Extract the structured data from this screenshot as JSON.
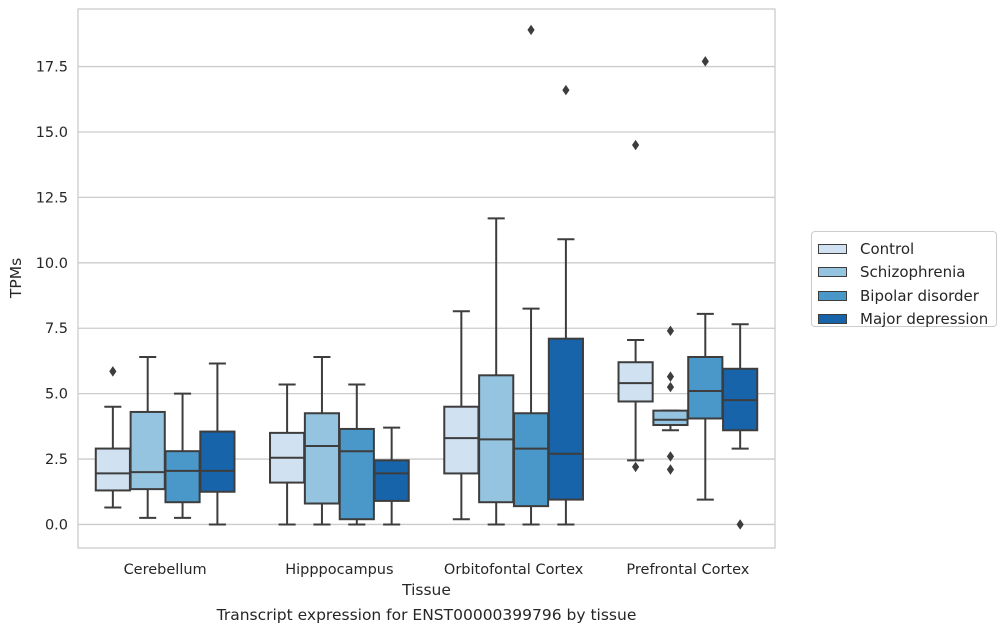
{
  "caption": "Transcript expression for ENST00000399796 by tissue",
  "chart_data": {
    "type": "box",
    "xlabel": "Tissue",
    "ylabel": "TPMs",
    "ylim": [
      -0.9,
      19.7
    ],
    "yticks": [
      0.0,
      2.5,
      5.0,
      7.5,
      10.0,
      12.5,
      15.0,
      17.5
    ],
    "ytick_labels": [
      "0.0",
      "2.5",
      "5.0",
      "7.5",
      "10.0",
      "12.5",
      "15.0",
      "17.5"
    ],
    "grid": "horizontal",
    "legend_position": "right",
    "categories": [
      "Cerebellum",
      "Hipppocampus",
      "Orbitofontal Cortex",
      "Prefrontal Cortex"
    ],
    "series": [
      {
        "name": "Control",
        "color": "#d0e1f2",
        "boxes": [
          {
            "whislo": 0.65,
            "q1": 1.3,
            "med": 1.95,
            "q3": 2.9,
            "whishi": 4.5,
            "fliers": [
              5.85
            ]
          },
          {
            "whislo": 0.0,
            "q1": 1.6,
            "med": 2.55,
            "q3": 3.5,
            "whishi": 5.35,
            "fliers": []
          },
          {
            "whislo": 0.2,
            "q1": 1.95,
            "med": 3.3,
            "q3": 4.5,
            "whishi": 8.15,
            "fliers": []
          },
          {
            "whislo": 2.45,
            "q1": 4.7,
            "med": 5.4,
            "q3": 6.2,
            "whishi": 7.05,
            "fliers": [
              14.5,
              2.2
            ]
          }
        ]
      },
      {
        "name": "Schizophrenia",
        "color": "#94c4df",
        "boxes": [
          {
            "whislo": 0.25,
            "q1": 1.35,
            "med": 2.0,
            "q3": 4.3,
            "whishi": 6.4,
            "fliers": []
          },
          {
            "whislo": 0.0,
            "q1": 0.8,
            "med": 3.0,
            "q3": 4.25,
            "whishi": 6.4,
            "fliers": []
          },
          {
            "whislo": 0.0,
            "q1": 0.85,
            "med": 3.25,
            "q3": 5.7,
            "whishi": 11.7,
            "fliers": []
          },
          {
            "whislo": 3.6,
            "q1": 3.8,
            "med": 4.0,
            "q3": 4.35,
            "whishi": 4.35,
            "fliers": [
              7.4,
              5.65,
              5.25,
              2.6,
              2.1
            ]
          }
        ]
      },
      {
        "name": "Bipolar disorder",
        "color": "#4a98c9",
        "boxes": [
          {
            "whislo": 0.25,
            "q1": 0.85,
            "med": 2.05,
            "q3": 2.8,
            "whishi": 5.0,
            "fliers": []
          },
          {
            "whislo": 0.0,
            "q1": 0.2,
            "med": 2.8,
            "q3": 3.65,
            "whishi": 5.35,
            "fliers": []
          },
          {
            "whislo": 0.0,
            "q1": 0.7,
            "med": 2.9,
            "q3": 4.25,
            "whishi": 8.25,
            "fliers": [
              18.9
            ]
          },
          {
            "whislo": 0.95,
            "q1": 4.05,
            "med": 5.1,
            "q3": 6.4,
            "whishi": 8.05,
            "fliers": [
              17.7
            ]
          }
        ]
      },
      {
        "name": "Major depression",
        "color": "#1764ab",
        "boxes": [
          {
            "whislo": 0.0,
            "q1": 1.25,
            "med": 2.05,
            "q3": 3.55,
            "whishi": 6.15,
            "fliers": []
          },
          {
            "whislo": 0.0,
            "q1": 0.9,
            "med": 1.95,
            "q3": 2.45,
            "whishi": 3.7,
            "fliers": []
          },
          {
            "whislo": 0.0,
            "q1": 0.95,
            "med": 2.7,
            "q3": 7.1,
            "whishi": 10.9,
            "fliers": [
              16.6
            ]
          },
          {
            "whislo": 2.9,
            "q1": 3.6,
            "med": 4.75,
            "q3": 5.95,
            "whishi": 7.65,
            "fliers": [
              0.0
            ]
          }
        ]
      }
    ]
  }
}
